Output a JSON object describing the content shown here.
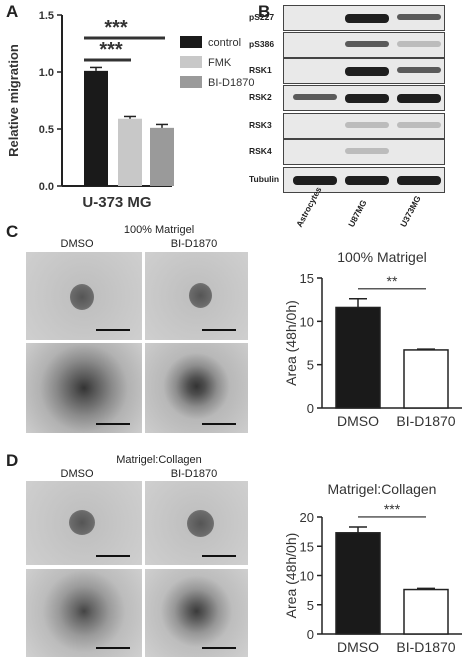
{
  "panels": {
    "A": "A",
    "B": "B",
    "C": "C",
    "D": "D"
  },
  "panelA": {
    "chart_data": {
      "type": "bar",
      "title": "",
      "xlabel": "U-373 MG",
      "ylabel": "Relative migration",
      "ylim": [
        0,
        1.5
      ],
      "yticks": [
        "0.0",
        "0.5",
        "1.0",
        "1.5"
      ],
      "categories": [
        "control",
        "FMK",
        "BI-D1870"
      ],
      "values": [
        1.01,
        0.59,
        0.51
      ],
      "errors": [
        0.03,
        0.02,
        0.03
      ],
      "colors": [
        "#1a1a1a",
        "#c8c8c8",
        "#9a9a9a"
      ],
      "significance": [
        "***",
        "***"
      ],
      "legend": "top-right"
    }
  },
  "panelB": {
    "rows": [
      "pS227",
      "pS386",
      "RSK1",
      "RSK2",
      "RSK3",
      "RSK4",
      "Tubulin"
    ],
    "lanes": [
      "Astrocytes",
      "U87MG",
      "U373MG"
    ]
  },
  "panelC": {
    "micro_title": "100% Matrigel",
    "col_labels": [
      "DMSO",
      "BI-D1870"
    ],
    "chart_data": {
      "type": "bar",
      "title": "100% Matrigel",
      "xlabel": "",
      "ylabel": "Area (48h/0h)",
      "ylim": [
        0,
        15
      ],
      "yticks": [
        "0",
        "5",
        "10",
        "15"
      ],
      "categories": [
        "DMSO",
        "BI-D1870"
      ],
      "values": [
        11.6,
        6.7
      ],
      "errors": [
        1.0,
        0.1
      ],
      "colors": [
        "#1a1a1a",
        "#ffffff"
      ],
      "significance": "**"
    }
  },
  "panelD": {
    "micro_title": "Matrigel:Collagen",
    "col_labels": [
      "DMSO",
      "BI-D1870"
    ],
    "chart_data": {
      "type": "bar",
      "title": "Matrigel:Collagen",
      "xlabel": "",
      "ylabel": "Area (48h/0h)",
      "ylim": [
        0,
        20
      ],
      "yticks": [
        "0",
        "5",
        "10",
        "15",
        "20"
      ],
      "categories": [
        "DMSO",
        "BI-D1870"
      ],
      "values": [
        17.3,
        7.6
      ],
      "errors": [
        1.0,
        0.2
      ],
      "colors": [
        "#1a1a1a",
        "#ffffff"
      ],
      "significance": "***"
    }
  }
}
